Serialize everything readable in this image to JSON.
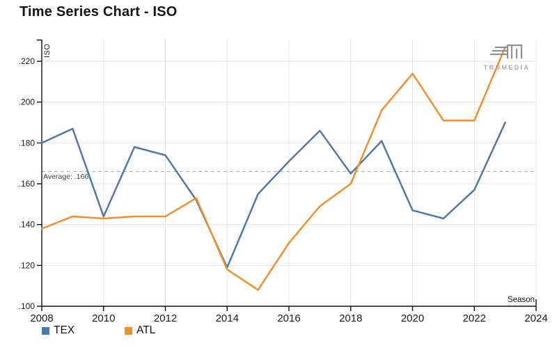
{
  "logo": {
    "text": "TRUMEDIA"
  },
  "legend": [
    {
      "label": "TEX",
      "color": "#4e79a7"
    },
    {
      "label": "ATL",
      "color": "#f28e2b"
    }
  ],
  "chart_data": {
    "type": "line",
    "title": "Time Series Chart - ISO",
    "xlabel": "Season",
    "ylabel": "ISO",
    "x": [
      2008,
      2009,
      2010,
      2011,
      2012,
      2013,
      2014,
      2015,
      2016,
      2017,
      2018,
      2019,
      2020,
      2021,
      2022,
      2023
    ],
    "series": [
      {
        "name": "TEX",
        "color": "#4e79a7",
        "values": [
          0.18,
          0.187,
          0.144,
          0.178,
          0.174,
          0.152,
          0.119,
          0.155,
          0.171,
          0.186,
          0.165,
          0.181,
          0.147,
          0.143,
          0.157,
          0.19
        ]
      },
      {
        "name": "ATL",
        "color": "#f28e2b",
        "values": [
          0.138,
          0.144,
          0.143,
          0.144,
          0.144,
          0.153,
          0.118,
          0.108,
          0.131,
          0.149,
          0.16,
          0.196,
          0.214,
          0.191,
          0.191,
          0.227
        ]
      }
    ],
    "xticks": [
      2008,
      2010,
      2012,
      2014,
      2016,
      2018,
      2020,
      2022,
      2024
    ],
    "yticks": [
      {
        "label": ".100",
        "value": 0.1
      },
      {
        "label": ".120",
        "value": 0.12
      },
      {
        "label": ".140",
        "value": 0.14
      },
      {
        "label": ".160",
        "value": 0.16
      },
      {
        "label": ".180",
        "value": 0.18
      },
      {
        "label": ".200",
        "value": 0.2
      },
      {
        "label": ".220",
        "value": 0.22
      }
    ],
    "xlim": [
      2008,
      2024
    ],
    "ylim": [
      0.1,
      0.2306
    ],
    "grid": true,
    "grid_color": "#e4e4e4",
    "average": 0.166,
    "average_label": "Average: .166",
    "average_line_color": "#b0b0b0",
    "legend_position": "bottom-left"
  }
}
